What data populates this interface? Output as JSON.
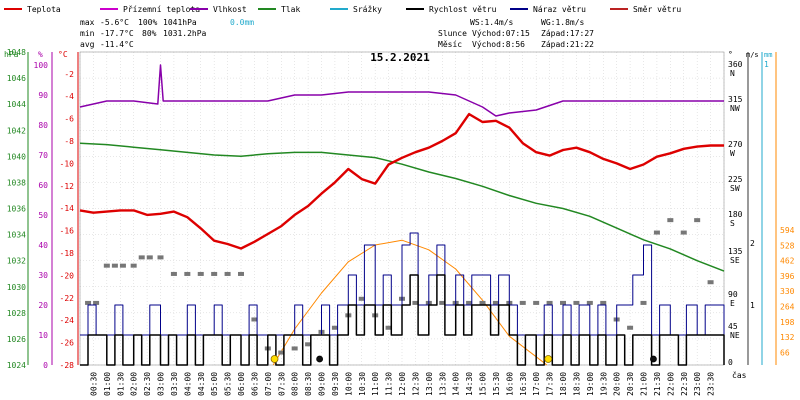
{
  "chart_data": {
    "type": "line",
    "title": "15.2.2021",
    "legend": [
      {
        "key": "temp",
        "label": "Teplota",
        "color": "#dd0000"
      },
      {
        "key": "feels",
        "label": "Přízemní teplota",
        "color": "#cc00cc"
      },
      {
        "key": "humidity",
        "label": "Vlhkost",
        "color": "#8800aa"
      },
      {
        "key": "pressure",
        "label": "Tlak",
        "color": "#228822"
      },
      {
        "key": "rain",
        "label": "Srážky",
        "color": "#22aacc"
      },
      {
        "key": "wind",
        "label": "Rychlost větru",
        "color": "#000000"
      },
      {
        "key": "gust",
        "label": "Náraz větru",
        "color": "#000088"
      },
      {
        "key": "dir",
        "label": "Směr větru",
        "color": "#bb2222"
      }
    ],
    "stats": {
      "max": {
        "label": "max",
        "temp": "-5.6°C",
        "hum": "100%",
        "press": "1041hPa",
        "rain": "0.0mm"
      },
      "min": {
        "label": "min",
        "temp": "-17.7°C",
        "hum": "80%",
        "press": "1031.2hPa"
      },
      "avg": {
        "label": "avg",
        "temp": "-11.4°C"
      },
      "ws": "WS:1.4m/s",
      "wg": "WG:1.8m/s",
      "sun": {
        "label": "Slunce",
        "rise_label": "Východ:07:15",
        "set_label": "Západ:17:27"
      },
      "moon": {
        "label": "Měsíc",
        "rise_label": "Východ:8:56",
        "set_label": "Západ:21:22"
      }
    },
    "axes": {
      "hpa": {
        "unit": "hPa",
        "color": "#228822",
        "ticks": [
          "1048",
          "1046",
          "1044",
          "1042",
          "1040",
          "1038",
          "1036",
          "1034",
          "1032",
          "1030",
          "1028",
          "1026",
          "1024"
        ],
        "range": [
          1024,
          1048
        ]
      },
      "pct": {
        "unit": "%",
        "color": "#aa00aa",
        "ticks": [
          "100",
          "90",
          "80",
          "70",
          "60",
          "50",
          "40",
          "30",
          "20",
          "10",
          "0"
        ],
        "range": [
          0,
          100
        ]
      },
      "degc": {
        "unit": "°C",
        "color": "#dd0000",
        "ticks": [
          "-2",
          "-4",
          "-6",
          "-8",
          "-10",
          "-12",
          "-14",
          "-16",
          "-18",
          "-20",
          "-22",
          "-24",
          "-26",
          "-28"
        ],
        "range": [
          -28,
          0
        ]
      },
      "dir": {
        "unit": "°",
        "ticks": [
          "360\nN",
          "315\nNW",
          "270\nW",
          "225\nSW",
          "180\nS",
          "135\nSE",
          "90\nE",
          "45\nNE",
          "0"
        ]
      },
      "ms": {
        "unit": "m/s",
        "ticks": [
          "2",
          "1"
        ]
      },
      "mm": {
        "unit": "mm",
        "color": "#22aacc",
        "ticks": [
          "1"
        ]
      },
      "light": {
        "color": "#ff8800",
        "ticks": [
          "594",
          "528",
          "462",
          "396",
          "330",
          "264",
          "198",
          "132",
          "66"
        ]
      },
      "x": {
        "label": "čas",
        "ticks": [
          "00:30",
          "01:00",
          "01:30",
          "02:00",
          "02:30",
          "03:00",
          "03:30",
          "04:00",
          "04:30",
          "05:00",
          "05:30",
          "06:00",
          "06:30",
          "07:00",
          "07:30",
          "08:00",
          "08:30",
          "09:00",
          "09:30",
          "10:00",
          "10:30",
          "11:00",
          "11:30",
          "12:00",
          "12:30",
          "13:00",
          "13:30",
          "14:00",
          "14:30",
          "15:00",
          "15:30",
          "16:00",
          "16:30",
          "17:00",
          "17:30",
          "18:00",
          "18:30",
          "19:00",
          "19:30",
          "20:00",
          "20:30",
          "21:00",
          "21:30",
          "22:00",
          "22:30",
          "23:00",
          "23:30"
        ]
      }
    },
    "series": [
      {
        "name": "Teplota",
        "unit": "°C",
        "color": "#dd0000",
        "x": [
          0,
          0.5,
          1,
          1.5,
          2,
          2.5,
          3,
          3.5,
          4,
          4.5,
          5,
          5.5,
          6,
          6.5,
          7,
          7.5,
          8,
          8.5,
          9,
          9.5,
          10,
          10.5,
          11,
          11.5,
          12,
          12.5,
          13,
          13.5,
          14,
          14.5,
          15,
          15.5,
          16,
          16.5,
          17,
          17.5,
          18,
          18.5,
          19,
          19.5,
          20,
          20.5,
          21,
          21.5,
          22,
          22.5,
          23,
          23.5,
          24
        ],
        "y": [
          -14.2,
          -14.4,
          -14.3,
          -14.2,
          -14.2,
          -14.6,
          -14.5,
          -14.3,
          -14.8,
          -15.8,
          -16.9,
          -17.2,
          -17.6,
          -17.0,
          -16.3,
          -15.6,
          -14.6,
          -13.8,
          -12.7,
          -11.7,
          -10.5,
          -11.4,
          -11.8,
          -10.1,
          -9.5,
          -9.0,
          -8.6,
          -8.0,
          -7.3,
          -5.6,
          -6.3,
          -6.2,
          -6.8,
          -8.2,
          -9.0,
          -9.3,
          -8.8,
          -8.6,
          -9.0,
          -9.6,
          -10.0,
          -10.5,
          -10.1,
          -9.4,
          -9.1,
          -8.7,
          -8.5,
          -8.4,
          -8.4
        ]
      },
      {
        "name": "Vlhkost",
        "unit": "%",
        "color": "#8800aa",
        "x": [
          0,
          1,
          2,
          2.9,
          3,
          3.1,
          3.5,
          5,
          6,
          7,
          8,
          9,
          10,
          11,
          12,
          13,
          14,
          14.5,
          15,
          15.5,
          16,
          17,
          18,
          19,
          20,
          21,
          22,
          23,
          24
        ],
        "y": [
          86,
          88,
          88,
          87,
          100,
          88,
          88,
          88,
          88,
          88,
          90,
          90,
          91,
          91,
          91,
          91,
          90,
          88,
          86,
          83,
          84,
          85,
          88,
          88,
          88,
          88,
          88,
          88,
          88
        ]
      },
      {
        "name": "Tlak",
        "unit": "hPa",
        "color": "#228822",
        "x": [
          0,
          1,
          2,
          3,
          4,
          5,
          6,
          7,
          8,
          9,
          10,
          11,
          12,
          13,
          14,
          15,
          16,
          17,
          18,
          19,
          20,
          21,
          22,
          23,
          24
        ],
        "y": [
          1041.0,
          1040.9,
          1040.7,
          1040.5,
          1040.3,
          1040.1,
          1040.0,
          1040.2,
          1040.3,
          1040.3,
          1040.1,
          1039.9,
          1039.4,
          1038.8,
          1038.3,
          1037.7,
          1037.0,
          1036.4,
          1036.0,
          1035.4,
          1034.5,
          1033.6,
          1032.9,
          1032.0,
          1031.2
        ]
      },
      {
        "name": "Rychlost větru",
        "unit": "m/s",
        "color": "#000000",
        "x": [
          0,
          0.3,
          0.6,
          1,
          1.3,
          1.6,
          2,
          2.3,
          2.6,
          3,
          3.3,
          3.6,
          4,
          4.3,
          4.6,
          5,
          5.3,
          5.6,
          6,
          6.3,
          6.6,
          7,
          7.3,
          7.6,
          8,
          8.3,
          8.6,
          9,
          9.3,
          9.6,
          10,
          10.3,
          10.6,
          11,
          11.3,
          11.6,
          12,
          12.3,
          12.6,
          13,
          13.3,
          13.6,
          14,
          14.3,
          14.6,
          15,
          15.3,
          15.6,
          16,
          16.3,
          16.6,
          17,
          17.3,
          17.6,
          18,
          18.3,
          18.6,
          19,
          19.3,
          19.6,
          20,
          20.3,
          20.6,
          21,
          21.3,
          21.6,
          22,
          22.3,
          22.6,
          23,
          23.3,
          23.6,
          24
        ],
        "y": [
          0,
          0.5,
          0.5,
          0,
          0.5,
          0,
          0.5,
          0,
          0.5,
          0,
          0.5,
          0,
          0.5,
          0,
          0.5,
          0.5,
          0,
          0.5,
          0,
          0.5,
          0,
          0.5,
          0,
          0.5,
          0.5,
          0,
          0.5,
          0.5,
          0,
          0.5,
          1.0,
          0.5,
          1.0,
          0.5,
          1.0,
          0.5,
          1.0,
          1.5,
          0.5,
          1.0,
          1.5,
          0.5,
          1.0,
          0.5,
          1.0,
          1.0,
          0.5,
          1.0,
          0.5,
          0,
          0.5,
          0,
          0.5,
          0,
          0.5,
          0,
          0.5,
          0,
          0.5,
          0,
          0.5,
          0,
          0.5,
          0.5,
          0,
          0.5,
          0.5,
          0,
          0.5,
          0.5,
          0.5,
          0.5,
          0
        ]
      },
      {
        "name": "Náraz větru",
        "unit": "m/s",
        "color": "#000088",
        "x": [
          0,
          0.3,
          0.6,
          1,
          1.3,
          1.6,
          2,
          2.3,
          2.6,
          3,
          3.3,
          3.6,
          4,
          4.3,
          4.6,
          5,
          5.3,
          5.6,
          6,
          6.3,
          6.6,
          7,
          7.3,
          7.6,
          8,
          8.3,
          8.6,
          9,
          9.3,
          9.6,
          10,
          10.3,
          10.6,
          11,
          11.3,
          11.6,
          12,
          12.3,
          12.6,
          13,
          13.3,
          13.6,
          14,
          14.3,
          14.6,
          15,
          15.3,
          15.6,
          16,
          16.3,
          16.6,
          17,
          17.3,
          17.6,
          18,
          18.3,
          18.6,
          19,
          19.3,
          19.6,
          20,
          20.3,
          20.6,
          21,
          21.3,
          21.6,
          22,
          22.3,
          22.6,
          23,
          23.3,
          23.6,
          24
        ],
        "y": [
          0.5,
          1.0,
          0.5,
          0.5,
          1.0,
          0.5,
          0.5,
          0.5,
          1.0,
          0.5,
          0.5,
          0.5,
          1.0,
          0.5,
          0.5,
          1.0,
          0.5,
          0.5,
          0.5,
          1.0,
          0.5,
          0.5,
          0.5,
          0.5,
          1.0,
          0.5,
          0.5,
          1.0,
          0.5,
          1.0,
          1.5,
          1.0,
          2.0,
          1.0,
          1.5,
          1.0,
          2.0,
          2.2,
          1.0,
          1.5,
          2.0,
          1.0,
          1.5,
          1.0,
          1.5,
          1.5,
          1.0,
          1.5,
          1.0,
          0.5,
          0.5,
          0.5,
          1.0,
          0.5,
          1.0,
          0.5,
          1.0,
          0.5,
          1.0,
          0.5,
          1.0,
          1.0,
          1.5,
          2.0,
          0.5,
          1.0,
          0.5,
          0.5,
          1.0,
          0.5,
          1.0,
          1.0,
          0.5
        ]
      },
      {
        "name": "Směr větru",
        "unit": "°",
        "color": "#777777",
        "x": [
          0.3,
          0.6,
          1,
          1.3,
          1.6,
          2,
          2.3,
          2.6,
          3,
          3.5,
          4,
          4.5,
          5,
          5.5,
          6,
          6.5,
          7,
          7.5,
          8,
          8.5,
          9,
          9.5,
          10,
          10.5,
          11,
          11.5,
          12,
          12.5,
          13,
          13.5,
          14,
          14.5,
          15,
          15.5,
          16,
          16.5,
          17,
          17.5,
          18,
          18.5,
          19,
          19.5,
          20,
          20.5,
          21,
          21.5,
          22,
          22.5,
          23,
          23.5
        ],
        "y": [
          75,
          75,
          120,
          120,
          120,
          120,
          130,
          130,
          130,
          110,
          110,
          110,
          110,
          110,
          110,
          55,
          20,
          15,
          20,
          25,
          40,
          45,
          60,
          80,
          60,
          45,
          80,
          75,
          75,
          75,
          75,
          75,
          75,
          75,
          75,
          75,
          75,
          75,
          75,
          75,
          75,
          75,
          55,
          45,
          75,
          160,
          175,
          160,
          175,
          100
        ]
      }
    ],
    "light_curve": {
      "name": "solar",
      "unit": "W/m2",
      "color": "#ff8800",
      "x": [
        7.2,
        8,
        9,
        10,
        11,
        12,
        13,
        14,
        15,
        16,
        17.4
      ],
      "y": [
        0,
        150,
        300,
        430,
        500,
        520,
        480,
        400,
        270,
        120,
        0
      ]
    }
  }
}
